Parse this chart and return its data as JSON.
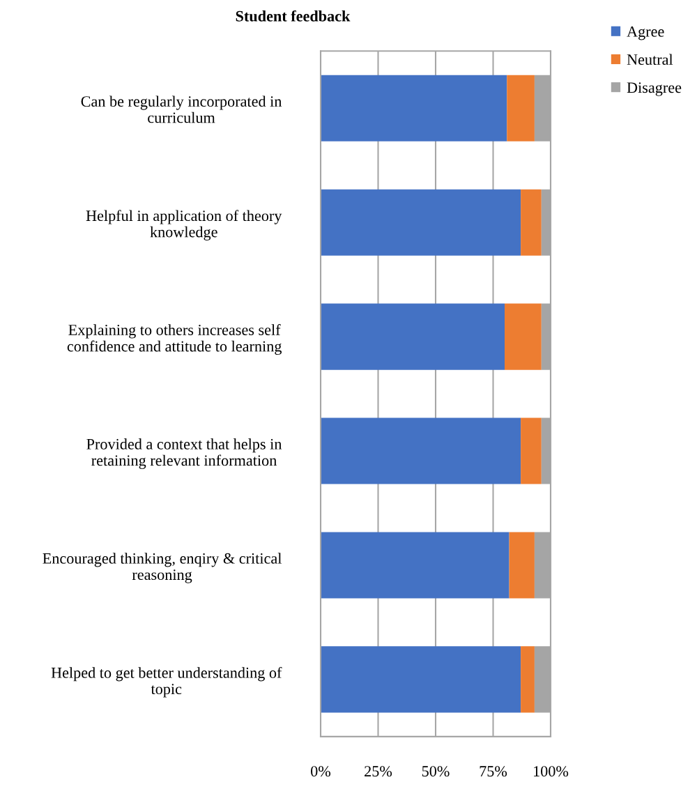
{
  "chart_data": {
    "type": "bar",
    "orientation": "horizontal",
    "stacked": true,
    "title": "Student feedback",
    "categories": [
      "Can be regularly incorporated in\ncurriculum",
      "Helpful in application of theory\nknowledge",
      "Explaining to others increases self\nconfidence and attitude to learning",
      "Provided a context that helps in\nretaining relevant information",
      "Encouraged thinking, enqiry & critical\nreasoning",
      "Helped to get better understanding of\ntopic"
    ],
    "series": [
      {
        "name": "Agree",
        "color": "#4472c4",
        "values": [
          81,
          87,
          80,
          87,
          82,
          87
        ]
      },
      {
        "name": "Neutral",
        "color": "#ed7d31",
        "values": [
          12,
          9,
          16,
          9,
          11,
          6
        ]
      },
      {
        "name": "Disagree",
        "color": "#a5a5a5",
        "values": [
          7,
          4,
          4,
          4,
          7,
          7
        ]
      }
    ],
    "xlim": [
      0,
      100
    ],
    "xticks": [
      {
        "value": 0,
        "label": "0%"
      },
      {
        "value": 25,
        "label": "25%"
      },
      {
        "value": 50,
        "label": "50%"
      },
      {
        "value": 75,
        "label": "75%"
      },
      {
        "value": 100,
        "label": "100%"
      }
    ],
    "grid": "x",
    "legend": "top right"
  }
}
